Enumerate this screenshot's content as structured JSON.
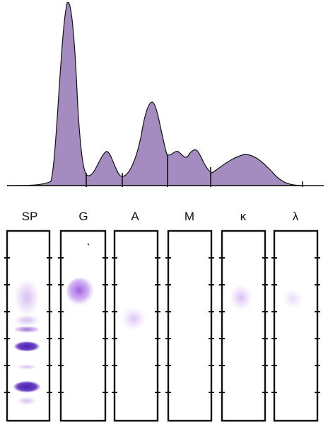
{
  "lanes": [
    {
      "label": "SP"
    },
    {
      "label": "G"
    },
    {
      "label": "A"
    },
    {
      "label": "M"
    },
    {
      "label": "κ"
    },
    {
      "label": "λ"
    }
  ],
  "colors": {
    "curve_fill": "#a58cc0",
    "curve_stroke": "#111111",
    "band_purple": "#7a3fc0",
    "strip_border": "#111111"
  }
}
